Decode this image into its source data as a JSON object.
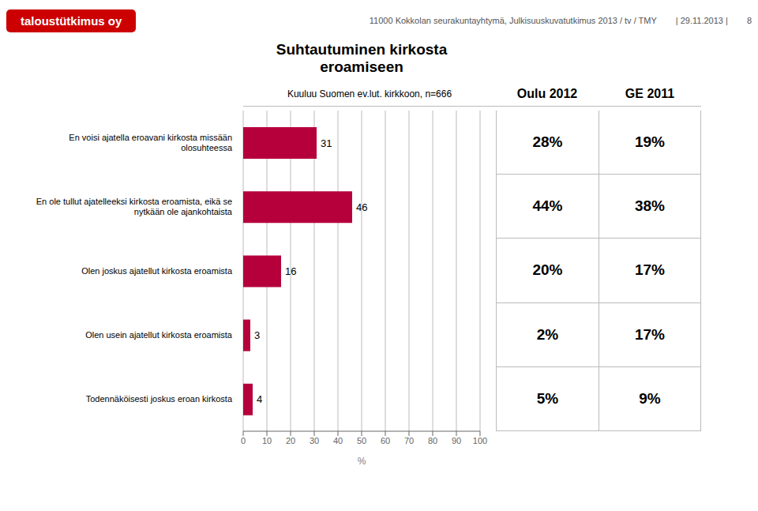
{
  "chart_data": {
    "type": "bar",
    "orientation": "horizontal",
    "title": "Suhtautuminen kirkosta eroamiseen",
    "subtitle": "Kuuluu Suomen ev.lut.  kirkkoon, n=666",
    "annotations": [
      {
        "text": "taloustütkimus oy",
        "color": "#cc0000"
      },
      {
        "text": "11000 Kokkolan seurakuntayhtymä, Julkisuuskuvatutkimus 2013 / tv / TMY",
        "color": "#555555"
      },
      {
        "text": "| 29.11.2013 |",
        "color": "#555555"
      },
      {
        "text": "8",
        "color": "#555555"
      }
    ],
    "categories": [
      "En voisi ajatella eroavani kirkosta missään\nolosuhteessa",
      "En ole tullut ajatelleeksi kirkosta eroamista, eikä se\nnytkään ole ajankohtaista",
      "Olen joskus ajatellut kirkosta eroamista",
      "Olen usein ajatellut kirkosta eroamista",
      "Todennäköisesti joskus eroan kirkosta"
    ],
    "values": [
      31,
      46,
      16,
      3,
      4
    ],
    "color": "#b5003c",
    "data_labels": true,
    "xlabel": "%",
    "xlim": [
      0,
      100
    ],
    "xticks": [
      0,
      10,
      20,
      30,
      40,
      50,
      60,
      70,
      80,
      90,
      100
    ],
    "grid": true,
    "table_columns": [
      {
        "name": "Oulu 2012",
        "values": [
          28,
          44,
          20,
          2,
          5
        ],
        "value_labels": [
          "28%",
          "44%",
          "20%",
          "2%",
          "5%"
        ]
      },
      {
        "name": "GE 2011",
        "values": [
          19,
          38,
          17,
          17,
          9
        ],
        "value_labels": [
          "19%",
          "38%",
          "17%",
          "17%",
          "9%"
        ]
      }
    ]
  }
}
